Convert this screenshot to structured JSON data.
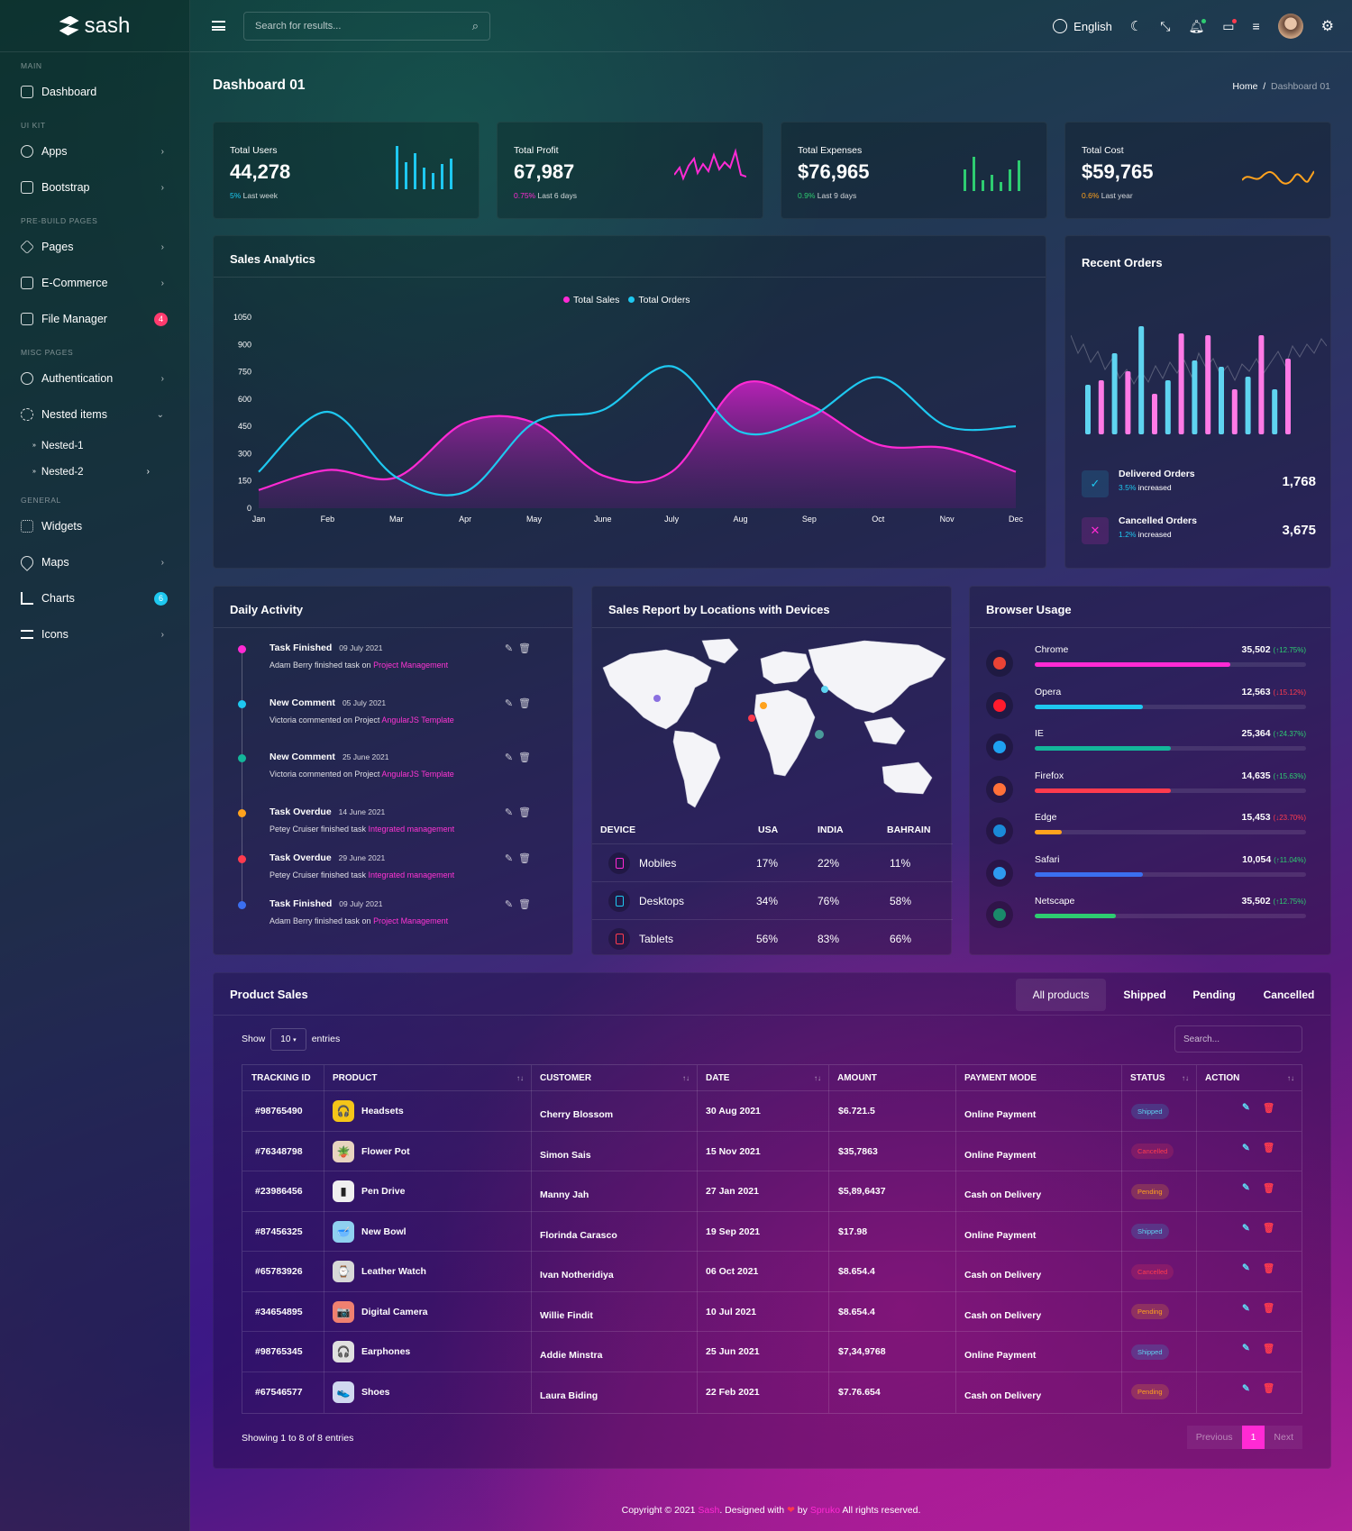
{
  "app": {
    "name": "sash"
  },
  "colors": {
    "accent": "#ff2ad4",
    "cyan": "#1ec8f0",
    "green": "#2ecc71",
    "orange": "#ffa21d",
    "red": "#ff3b4e"
  },
  "sidebar": {
    "cats": {
      "main": "MAIN",
      "uikit": "UI KIT",
      "prebuild": "PRE-BUILD PAGES",
      "misc": "MISC PAGES",
      "general": "GENERAL"
    },
    "items": [
      {
        "label": "Dashboard",
        "icon": "home-icon"
      },
      {
        "label": "Apps",
        "icon": "apps-icon"
      },
      {
        "label": "Bootstrap",
        "icon": "box-icon"
      },
      {
        "label": "Pages",
        "icon": "layers-icon"
      },
      {
        "label": "E-Commerce",
        "icon": "shopping-bag-icon"
      },
      {
        "label": "File Manager",
        "icon": "folder-icon",
        "badge": "4"
      },
      {
        "label": "Authentication",
        "icon": "users-icon"
      },
      {
        "label": "Nested items",
        "icon": "gear-icon"
      },
      {
        "label": "Widgets",
        "icon": "grid-icon"
      },
      {
        "label": "Maps",
        "icon": "map-pin-icon"
      },
      {
        "label": "Charts",
        "icon": "bar-chart-icon",
        "badge": "6"
      },
      {
        "label": "Icons",
        "icon": "sliders-icon"
      }
    ],
    "nested": [
      "Nested-1",
      "Nested-2"
    ]
  },
  "header": {
    "search_placeholder": "Search for results...",
    "language": "English"
  },
  "page": {
    "title": "Dashboard 01",
    "breadcrumb_home": "Home",
    "breadcrumb_sep": "/",
    "breadcrumb_current": "Dashboard 01"
  },
  "stats": [
    {
      "label": "Total Users",
      "value": "44,278",
      "change": "5%",
      "period": "Last week",
      "color": "#1ec8f0"
    },
    {
      "label": "Total Profit",
      "value": "67,987",
      "change": "0.75%",
      "period": "Last 6 days",
      "color": "#ff2ad4"
    },
    {
      "label": "Total Expenses",
      "value": "$76,965",
      "change": "0.9%",
      "period": "Last 9 days",
      "color": "#2ecc71"
    },
    {
      "label": "Total Cost",
      "value": "$59,765",
      "change": "0.6%",
      "period": "Last year",
      "color": "#ffa21d"
    }
  ],
  "sales_analytics": {
    "title": "Sales Analytics"
  },
  "chart_data": {
    "type": "area",
    "x": [
      "Jan",
      "Feb",
      "Mar",
      "Apr",
      "May",
      "June",
      "July",
      "Aug",
      "Sep",
      "Oct",
      "Nov",
      "Dec"
    ],
    "ylim": [
      0,
      1050
    ],
    "yticks": [
      0,
      150,
      300,
      450,
      600,
      750,
      900,
      1050
    ],
    "series": [
      {
        "name": "Total Sales",
        "color": "#ff2ad4",
        "values": [
          100,
          210,
          170,
          470,
          470,
          180,
          200,
          680,
          570,
          350,
          330,
          200
        ]
      },
      {
        "name": "Total Orders",
        "color": "#1ec8f0",
        "values": [
          200,
          530,
          170,
          90,
          470,
          540,
          780,
          420,
          500,
          720,
          450,
          450
        ]
      }
    ]
  },
  "recent_orders": {
    "title": "Recent Orders",
    "delivered": {
      "label": "Delivered Orders",
      "pct": "3.5%",
      "note": "increased",
      "value": "1,768"
    },
    "cancelled": {
      "label": "Cancelled Orders",
      "pct": "1.2%",
      "note": "increased",
      "value": "3,675"
    }
  },
  "daily_activity": {
    "title": "Daily Activity",
    "items": [
      {
        "title": "Task Finished",
        "date": "09 July 2021",
        "desc": "Adam Berry finished task on ",
        "link": "Project Management",
        "color": "#ff2ad4"
      },
      {
        "title": "New Comment",
        "date": "05 July 2021",
        "desc": "Victoria commented on Project ",
        "link": "AngularJS Template",
        "color": "#1ec8f0"
      },
      {
        "title": "New Comment",
        "date": "25 June 2021",
        "desc": "Victoria commented on Project ",
        "link": "AngularJS Template",
        "color": "#13b69a"
      },
      {
        "title": "Task Overdue",
        "date": "14 June 2021",
        "desc": "Petey Cruiser finished task ",
        "link": "Integrated management",
        "color": "#ffa21d"
      },
      {
        "title": "Task Overdue",
        "date": "29 June 2021",
        "desc": "Petey Cruiser finished task ",
        "link": "Integrated management",
        "color": "#ff3b4e"
      },
      {
        "title": "Task Finished",
        "date": "09 July 2021",
        "desc": "Adam Berry finished task on ",
        "link": "Project Management",
        "color": "#3b6ff0"
      }
    ]
  },
  "sales_report": {
    "title": "Sales Report by Locations with Devices",
    "headers": [
      "DEVICE",
      "USA",
      "INDIA",
      "BAHRAIN"
    ],
    "rows": [
      {
        "device": "Mobiles",
        "usa": "17%",
        "india": "22%",
        "bahrain": "11%",
        "icon": "mobile-icon",
        "color": "#ff2ad4"
      },
      {
        "device": "Desktops",
        "usa": "34%",
        "india": "76%",
        "bahrain": "58%",
        "icon": "desktop-icon",
        "color": "#1ec8f0"
      },
      {
        "device": "Tablets",
        "usa": "56%",
        "india": "83%",
        "bahrain": "66%",
        "icon": "tablet-icon",
        "color": "#ff3b4e"
      }
    ]
  },
  "browser_usage": {
    "title": "Browser Usage",
    "items": [
      {
        "name": "Chrome",
        "value": "35,502",
        "change": "(↑12.75%)",
        "pct": 0.72,
        "color": "#ff2ad4",
        "up": true
      },
      {
        "name": "Opera",
        "value": "12,563",
        "change": "(↓15.12%)",
        "pct": 0.4,
        "color": "#1ec8f0",
        "up": false
      },
      {
        "name": "IE",
        "value": "25,364",
        "change": "(↑24.37%)",
        "pct": 0.5,
        "color": "#13b69a",
        "up": true
      },
      {
        "name": "Firefox",
        "value": "14,635",
        "change": "(↑15.63%)",
        "pct": 0.5,
        "color": "#ff3b4e",
        "up": true
      },
      {
        "name": "Edge",
        "value": "15,453",
        "change": "(↓23.70%)",
        "pct": 0.1,
        "color": "#ffa21d",
        "up": false
      },
      {
        "name": "Safari",
        "value": "10,054",
        "change": "(↑11.04%)",
        "pct": 0.4,
        "color": "#3b6ff0",
        "up": true
      },
      {
        "name": "Netscape",
        "value": "35,502",
        "change": "(↑12.75%)",
        "pct": 0.3,
        "color": "#2ecc71",
        "up": true
      }
    ]
  },
  "product_sales": {
    "title": "Product Sales",
    "tabs": [
      "All products",
      "Shipped",
      "Pending",
      "Cancelled"
    ],
    "show": "Show",
    "entries_value": "10",
    "entries": "entries",
    "search_placeholder": "Search...",
    "columns": [
      "TRACKING ID",
      "PRODUCT",
      "CUSTOMER",
      "DATE",
      "AMOUNT",
      "PAYMENT MODE",
      "STATUS",
      "ACTION"
    ],
    "rows": [
      {
        "id": "#98765490",
        "product": "Headsets",
        "customer": "Cherry Blossom",
        "date": "30 Aug 2021",
        "amount": "$6.721.5",
        "mode": "Online Payment",
        "status": "Shipped",
        "icon": "🎧",
        "bg": "#f5c518"
      },
      {
        "id": "#76348798",
        "product": "Flower Pot",
        "customer": "Simon Sais",
        "date": "15 Nov 2021",
        "amount": "$35,7863",
        "mode": "Online Payment",
        "status": "Cancelled",
        "icon": "🪴",
        "bg": "#e8d4c0"
      },
      {
        "id": "#23986456",
        "product": "Pen Drive",
        "customer": "Manny Jah",
        "date": "27 Jan 2021",
        "amount": "$5,89,6437",
        "mode": "Cash on Delivery",
        "status": "Pending",
        "icon": "▮",
        "bg": "#f0f0f0"
      },
      {
        "id": "#87456325",
        "product": "New Bowl",
        "customer": "Florinda Carasco",
        "date": "19 Sep 2021",
        "amount": "$17.98",
        "mode": "Online Payment",
        "status": "Shipped",
        "icon": "🥣",
        "bg": "#8fd0f0"
      },
      {
        "id": "#65783926",
        "product": "Leather Watch",
        "customer": "Ivan Notheridiya",
        "date": "06 Oct 2021",
        "amount": "$8.654.4",
        "mode": "Cash on Delivery",
        "status": "Cancelled",
        "icon": "⌚",
        "bg": "#d8d8d8"
      },
      {
        "id": "#34654895",
        "product": "Digital Camera",
        "customer": "Willie Findit",
        "date": "10 Jul 2021",
        "amount": "$8.654.4",
        "mode": "Cash on Delivery",
        "status": "Pending",
        "icon": "📷",
        "bg": "#f08070"
      },
      {
        "id": "#98765345",
        "product": "Earphones",
        "customer": "Addie Minstra",
        "date": "25 Jun 2021",
        "amount": "$7,34,9768",
        "mode": "Online Payment",
        "status": "Shipped",
        "icon": "🎧",
        "bg": "#e0e0e0"
      },
      {
        "id": "#67546577",
        "product": "Shoes",
        "customer": "Laura Biding",
        "date": "22 Feb 2021",
        "amount": "$7.76.654",
        "mode": "Cash on Delivery",
        "status": "Pending",
        "icon": "👟",
        "bg": "#d0d8f0"
      }
    ],
    "info": "Showing 1 to 8 of 8 entries",
    "prev": "Previous",
    "page": "1",
    "next": "Next"
  },
  "footer": {
    "pre": "Copyright © 2021 ",
    "brand": "Sash",
    "mid": ". Designed with ",
    "heart": "❤",
    "by": " by ",
    "author": "Spruko",
    "post": " All rights reserved."
  }
}
